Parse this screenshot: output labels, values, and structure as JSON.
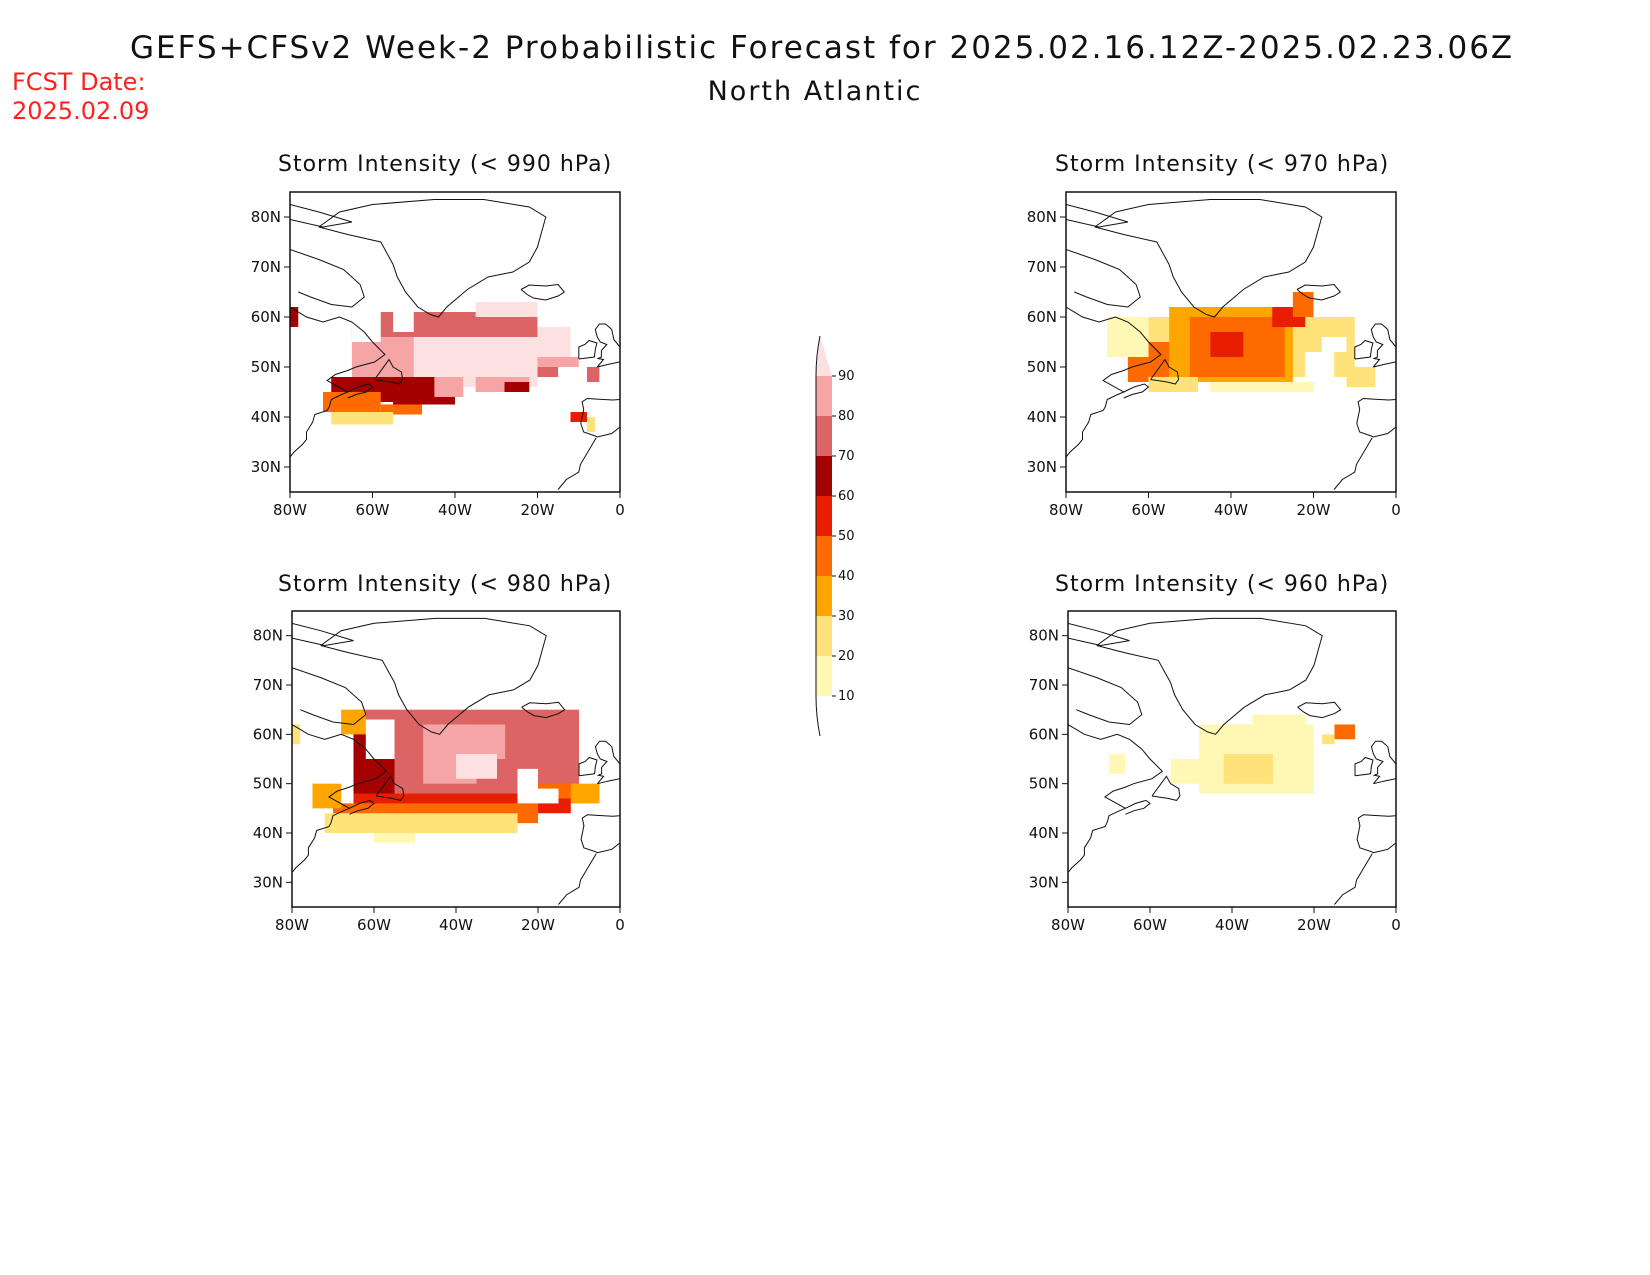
{
  "title": "GEFS+CFSv2 Week-2 Probabilistic Forecast for 2025.02.16.12Z-2025.02.23.06Z",
  "subtitle": "North Atlantic",
  "forecast_date_label": "FCST Date:",
  "forecast_date": "2025.02.09",
  "axes": {
    "x_ticks": [
      "80W",
      "60W",
      "40W",
      "20W",
      "0"
    ],
    "y_ticks": [
      "80N",
      "70N",
      "60N",
      "50N",
      "40N",
      "30N"
    ],
    "lon_range": [
      -80,
      0
    ],
    "lat_range": [
      25,
      85
    ]
  },
  "colorbar": {
    "levels": [
      "10",
      "20",
      "30",
      "40",
      "50",
      "60",
      "70",
      "80",
      "90"
    ],
    "colors": [
      "#fff7b4",
      "#ffe27a",
      "#ffa500",
      "#ff6a00",
      "#e81e00",
      "#a50000",
      "#dc6464",
      "#f5a5a5",
      "#fde1e1"
    ]
  },
  "panels": [
    {
      "id": "990",
      "title": "Storm Intensity (< 990 hPa)"
    },
    {
      "id": "970",
      "title": "Storm Intensity (< 970 hPa)"
    },
    {
      "id": "980",
      "title": "Storm Intensity (< 980 hPa)"
    },
    {
      "id": "960",
      "title": "Storm Intensity (< 960 hPa)"
    }
  ]
}
